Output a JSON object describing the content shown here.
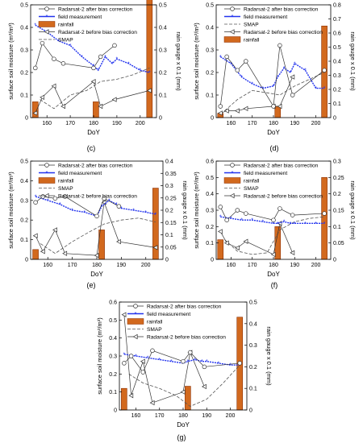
{
  "colors": {
    "rainfall": "#d2691e",
    "rainfall_edge": "#8b2e00",
    "field": "#2233ee",
    "radar_after": "#333333",
    "radar_before": "#333333",
    "smap": "#555555"
  },
  "chart_data": [
    {
      "id": "c",
      "caption": "(c)",
      "type": "line",
      "xlabel": "DoY",
      "ylabel": "surface soil moisture (m³/m³)",
      "y2label": "rain gauge x 0.1 (mm)",
      "xlim": [
        153,
        207
      ],
      "xticks": [
        160,
        170,
        180,
        190,
        200
      ],
      "ylim": [
        0,
        0.5
      ],
      "yticks": [
        0,
        0.1,
        0.2,
        0.3,
        0.4,
        0.5
      ],
      "y2lim": [
        0,
        0.5
      ],
      "y2ticks": [
        0,
        0.1,
        0.2,
        0.3,
        0.4,
        0.5
      ],
      "legend": [
        "Radarsat-2 after bias correction",
        "field measurement",
        "rainfall",
        "Radarsat-2 before bias correction",
        "SMAP"
      ],
      "series": {
        "radar_after": {
          "x": [
            155,
            158,
            163,
            167,
            180,
            183,
            189
          ],
          "y": [
            0.22,
            0.33,
            0.26,
            0.24,
            0.22,
            0.27,
            0.32
          ]
        },
        "radar_before": {
          "x": [
            155,
            158,
            163,
            167,
            180,
            183,
            189,
            204
          ],
          "y": [
            0.02,
            0.09,
            0.14,
            0.05,
            0.16,
            0.05,
            0.08,
            0.12
          ]
        },
        "field": {
          "x": [
            155,
            160,
            165,
            170,
            175,
            180,
            182,
            185,
            188,
            190,
            195,
            200,
            204
          ],
          "y": [
            0.41,
            0.38,
            0.34,
            0.32,
            0.27,
            0.23,
            0.21,
            0.27,
            0.24,
            0.26,
            0.24,
            0.21,
            0.2
          ]
        },
        "smap": {
          "x": [
            157,
            163,
            170,
            177,
            183,
            190,
            197,
            204
          ],
          "y": [
            0.08,
            0.04,
            0.1,
            0.12,
            0.16,
            0.17,
            0.19,
            0.22
          ]
        },
        "rainfall": {
          "x": [
            155,
            181,
            204
          ],
          "y": [
            0.07,
            0.07,
            0.53
          ]
        }
      }
    },
    {
      "id": "d",
      "caption": "(d)",
      "type": "line",
      "xlabel": "DoY",
      "ylabel": "surface soil moisture (m³/m³)",
      "y2label": "rain gauge x 0.1 (mm)",
      "xlim": [
        153,
        207
      ],
      "xticks": [
        160,
        170,
        180,
        190,
        200
      ],
      "ylim": [
        0,
        0.5
      ],
      "yticks": [
        0,
        0.1,
        0.2,
        0.3,
        0.4,
        0.5
      ],
      "y2lim": [
        0,
        0.8
      ],
      "y2ticks": [
        0,
        0.1,
        0.2,
        0.3,
        0.4,
        0.5,
        0.6,
        0.7,
        0.8
      ],
      "legend": [
        "Radarsat-2 after bias correction",
        "field measurement",
        "SMAP",
        "Radarsat-2 before bias correction",
        "rainfall"
      ],
      "series": {
        "radar_after": {
          "x": [
            155,
            158,
            163,
            167,
            180,
            183,
            189,
            204
          ],
          "y": [
            0.05,
            0.27,
            0.21,
            0.25,
            0.05,
            0.32,
            0.1,
            0.21
          ]
        },
        "radar_before": {
          "x": [
            155,
            158,
            163,
            167,
            180,
            183,
            189
          ],
          "y": [
            0.02,
            0.03,
            0.03,
            0.04,
            0.05,
            0.05,
            0.18
          ]
        },
        "field": {
          "x": [
            155,
            160,
            165,
            170,
            175,
            180,
            182,
            185,
            188,
            190,
            195,
            200,
            204
          ],
          "y": [
            0.27,
            0.24,
            0.18,
            0.15,
            0.13,
            0.14,
            0.18,
            0.22,
            0.2,
            0.24,
            0.21,
            0.13,
            0.13
          ]
        },
        "smap": {
          "x": [
            157,
            163,
            170,
            177,
            183,
            190,
            197,
            204
          ],
          "y": [
            0.03,
            0.08,
            0.12,
            0.11,
            0.1,
            0.14,
            0.17,
            0.2
          ]
        },
        "rainfall": {
          "x": [
            155,
            182,
            204
          ],
          "y": [
            0.03,
            0.08,
            0.65
          ]
        }
      }
    },
    {
      "id": "e",
      "caption": "(e)",
      "type": "line",
      "xlabel": "DoY",
      "ylabel": "surface soil moisture (m³/m³)",
      "y2label": "rain gauge x 0.1 (mm)",
      "xlim": [
        153,
        207
      ],
      "xticks": [
        160,
        170,
        180,
        190,
        200
      ],
      "ylim": [
        0,
        0.5
      ],
      "yticks": [
        0,
        0.1,
        0.2,
        0.3,
        0.4,
        0.5
      ],
      "y2lim": [
        0,
        0.4
      ],
      "y2ticks": [
        0,
        0.05,
        0.1,
        0.15,
        0.2,
        0.25,
        0.3,
        0.35,
        0.4
      ],
      "legend": [
        "Radarsat-2 after bias correction",
        "field measurement",
        "rainfall",
        "SMAP",
        "Radarsat-2 before bias correction"
      ],
      "series": {
        "radar_after": {
          "x": [
            155,
            158,
            163,
            167,
            180,
            183,
            189
          ],
          "y": [
            0.29,
            0.32,
            0.31,
            0.32,
            0.22,
            0.31,
            0.27
          ]
        },
        "radar_before": {
          "x": [
            155,
            158,
            163,
            167,
            180,
            183,
            189,
            204
          ],
          "y": [
            0.12,
            0.04,
            0.15,
            0.03,
            0.02,
            0.29,
            0.09,
            0.06
          ]
        },
        "field": {
          "x": [
            155,
            160,
            165,
            170,
            175,
            180,
            182,
            185,
            188,
            190,
            195,
            200,
            204
          ],
          "y": [
            0.32,
            0.3,
            0.28,
            0.25,
            0.24,
            0.22,
            0.27,
            0.3,
            0.28,
            0.26,
            0.25,
            0.24,
            0.23
          ]
        },
        "smap": {
          "x": [
            157,
            163,
            170,
            177,
            183,
            190,
            197,
            204
          ],
          "y": [
            0.08,
            0.03,
            0.09,
            0.14,
            0.18,
            0.2,
            0.21,
            0.19
          ]
        },
        "rainfall": {
          "x": [
            155,
            182,
            204
          ],
          "y": [
            0.04,
            0.12,
            0.29
          ]
        }
      }
    },
    {
      "id": "f",
      "caption": "(f)",
      "type": "line",
      "xlabel": "DoY",
      "ylabel": "surface soil moisture (m³/m³)",
      "y2label": "rain gauge x 0.1 (mm)",
      "xlim": [
        153,
        207
      ],
      "xticks": [
        160,
        170,
        180,
        190,
        200
      ],
      "ylim": [
        0,
        0.6
      ],
      "yticks": [
        0,
        0.1,
        0.2,
        0.3,
        0.4,
        0.5,
        0.6
      ],
      "y2lim": [
        0,
        0.3
      ],
      "y2ticks": [
        0,
        0.05,
        0.1,
        0.15,
        0.2,
        0.25,
        0.3
      ],
      "legend": [
        "Radarsat-2 after bias correction",
        "field measurement",
        "rainfall",
        "SMAP",
        "Radarsat-2 before bias correction"
      ],
      "series": {
        "radar_after": {
          "x": [
            155,
            158,
            163,
            167,
            180,
            183,
            189,
            204
          ],
          "y": [
            0.32,
            0.24,
            0.3,
            0.28,
            0.24,
            0.31,
            0.27,
            0.28
          ]
        },
        "radar_before": {
          "x": [
            155,
            158,
            163,
            167,
            180,
            183,
            189
          ],
          "y": [
            0.17,
            0.1,
            0.07,
            0.11,
            0.03,
            0.22,
            0.04
          ]
        },
        "field": {
          "x": [
            155,
            160,
            165,
            170,
            175,
            180,
            182,
            185,
            188,
            190,
            195,
            200,
            204
          ],
          "y": [
            0.26,
            0.25,
            0.24,
            0.24,
            0.23,
            0.22,
            0.22,
            0.23,
            0.22,
            0.22,
            0.22,
            0.22,
            0.22
          ]
        },
        "smap": {
          "x": [
            157,
            163,
            170,
            177,
            183,
            190,
            197,
            204
          ],
          "y": [
            0.12,
            0.05,
            0.03,
            0.04,
            0.18,
            0.23,
            0.25,
            0.26
          ]
        },
        "rainfall": {
          "x": [
            155,
            182,
            204
          ],
          "y": [
            0.06,
            0.1,
            0.25
          ]
        }
      }
    },
    {
      "id": "g",
      "caption": "(g)",
      "type": "line",
      "xlabel": "DoY",
      "ylabel": "surface soil moisture (m³/m³)",
      "y2label": "rain gauge x 0.1 (mm)",
      "xlim": [
        153,
        207
      ],
      "xticks": [
        160,
        170,
        180,
        190,
        200
      ],
      "ylim": [
        0,
        0.6
      ],
      "yticks": [
        0,
        0.1,
        0.2,
        0.3,
        0.4,
        0.5,
        0.6
      ],
      "y2lim": [
        0,
        0.5
      ],
      "y2ticks": [
        0,
        0.1,
        0.2,
        0.3,
        0.4,
        0.5
      ],
      "legend": [
        "Radarsat-2 after bias correction",
        "field measurement",
        "rainfall",
        "SMAP",
        "Radarsat-2 before bias correction"
      ],
      "series": {
        "radar_after": {
          "x": [
            155,
            158,
            163,
            167,
            180,
            183,
            189,
            204
          ],
          "y": [
            0.26,
            0.3,
            0.21,
            0.33,
            0.27,
            0.32,
            0.24,
            0.26
          ]
        },
        "radar_before": {
          "x": [
            155,
            158,
            163,
            167,
            180,
            183,
            189
          ],
          "y": [
            0.53,
            0.08,
            0.27,
            0.04,
            0.1,
            0.32,
            0.13
          ]
        },
        "field": {
          "x": [
            155,
            160,
            165,
            170,
            175,
            180,
            182,
            185,
            188,
            190,
            195,
            200,
            204
          ],
          "y": [
            0.31,
            0.3,
            0.29,
            0.28,
            0.27,
            0.26,
            0.27,
            0.28,
            0.27,
            0.27,
            0.26,
            0.25,
            0.25
          ]
        },
        "smap": {
          "x": [
            157,
            163,
            170,
            177,
            183,
            190,
            197,
            204
          ],
          "y": [
            0.2,
            0.15,
            0.12,
            0.08,
            0.02,
            0.06,
            0.15,
            0.25
          ]
        },
        "rainfall": {
          "x": [
            155,
            182,
            204
          ],
          "y": [
            0.1,
            0.11,
            0.43
          ]
        }
      }
    }
  ]
}
